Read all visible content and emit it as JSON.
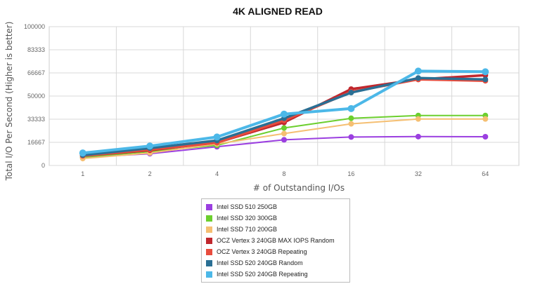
{
  "chart_data": {
    "type": "line",
    "title": "4K ALIGNED READ",
    "xlabel": "# of Outstanding I/Os",
    "ylabel": "Total I/O Per Second (Higher is better)",
    "categories": [
      "1",
      "2",
      "4",
      "8",
      "16",
      "32",
      "64"
    ],
    "ylim": [
      0,
      100000
    ],
    "yticks": [
      "0",
      "16667",
      "33333",
      "50000",
      "66667",
      "83333",
      "100000"
    ],
    "grid": true,
    "legend_position": "bottom",
    "series": [
      {
        "name": "Intel SSD 510 250GB",
        "color": "#9b3fe0",
        "values": [
          5800,
          8500,
          13500,
          18500,
          20500,
          20800,
          20700
        ]
      },
      {
        "name": "Intel SSD 320 300GB",
        "color": "#6ccf2e",
        "values": [
          6000,
          10000,
          14500,
          27000,
          34000,
          36000,
          36000
        ]
      },
      {
        "name": "Intel SSD 710 200GB",
        "color": "#f5bf72",
        "values": [
          5000,
          9000,
          15500,
          23000,
          30000,
          33500,
          33500
        ]
      },
      {
        "name": "OCZ Vertex 3 240GB MAX IOPS Random",
        "color": "#c0272d",
        "values": [
          7000,
          11000,
          16500,
          31000,
          55000,
          62000,
          65000
        ]
      },
      {
        "name": "OCZ Vertex 3 240GB Repeating",
        "color": "#e84c3d",
        "values": [
          7000,
          11500,
          16500,
          32500,
          53000,
          62000,
          61000
        ]
      },
      {
        "name": "Intel SSD 520 240GB Random",
        "color": "#2a6f94",
        "values": [
          7500,
          12500,
          18000,
          34000,
          52500,
          63000,
          62000
        ]
      },
      {
        "name": "Intel SSD 520 240GB Repeating",
        "color": "#4cb8e8",
        "values": [
          9000,
          14000,
          20500,
          37000,
          41000,
          68000,
          67500
        ]
      }
    ]
  }
}
